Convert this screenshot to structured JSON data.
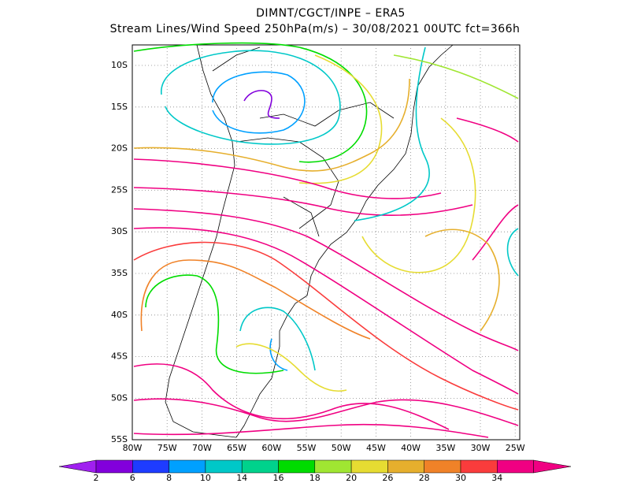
{
  "header": {
    "line1": "DIMNT/CGCT/INPE –  ERA5",
    "line2": "Stream Lines/Wind Speed 250hPa(m/s) –  30/08/2021 00UTC fct=366h"
  },
  "map": {
    "lat_labels": [
      "10S",
      "15S",
      "20S",
      "25S",
      "30S",
      "35S",
      "40S",
      "45S",
      "50S",
      "55S"
    ],
    "lon_labels": [
      "80W",
      "75W",
      "70W",
      "65W",
      "60W",
      "55W",
      "50W",
      "45W",
      "40W",
      "35W",
      "30W",
      "25W"
    ]
  },
  "colorbar": {
    "labels": [
      "2",
      "6",
      "8",
      "10",
      "14",
      "16",
      "18",
      "20",
      "26",
      "28",
      "30",
      "34"
    ],
    "colors": [
      "#a020f0",
      "#8200dc",
      "#1e3cff",
      "#00a0ff",
      "#00c8c8",
      "#00d28c",
      "#00dc00",
      "#a0e632",
      "#e6dc32",
      "#e6af2d",
      "#f08228",
      "#fa3c3c",
      "#f00082"
    ]
  }
}
